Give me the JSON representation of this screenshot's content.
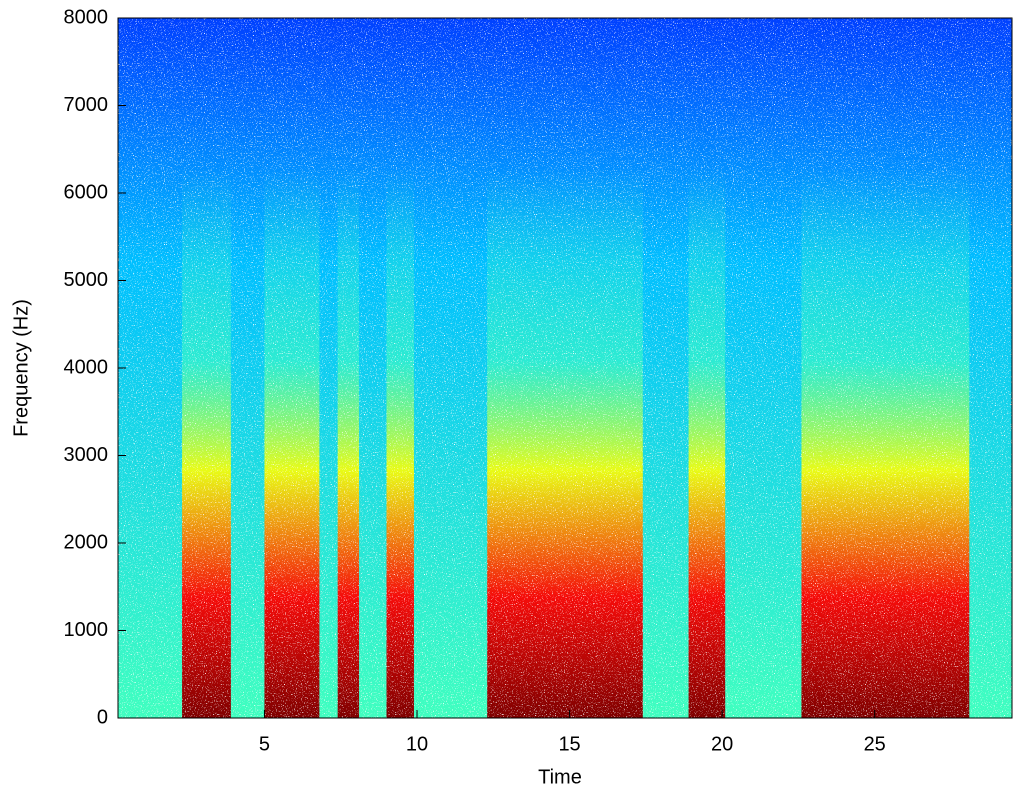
{
  "chart_data": {
    "type": "spectrogram",
    "xlabel": "Time",
    "ylabel": "Frequency (Hz)",
    "xlim": [
      0.2,
      29.5
    ],
    "ylim": [
      0,
      8000
    ],
    "xticks": [
      5,
      10,
      15,
      20,
      25
    ],
    "yticks": [
      0,
      1000,
      2000,
      3000,
      4000,
      5000,
      6000,
      7000,
      8000
    ],
    "segments": [
      [
        2.3,
        3.9
      ],
      [
        5.0,
        6.8
      ],
      [
        7.4,
        8.1
      ],
      [
        9.0,
        9.9
      ],
      [
        12.3,
        17.4
      ],
      [
        18.9,
        20.1
      ],
      [
        22.6,
        28.1
      ]
    ],
    "colormap": [
      "#7f0000",
      "#ff0000",
      "#ffff00",
      "#40ffbf",
      "#00bfff",
      "#0040ff"
    ]
  }
}
